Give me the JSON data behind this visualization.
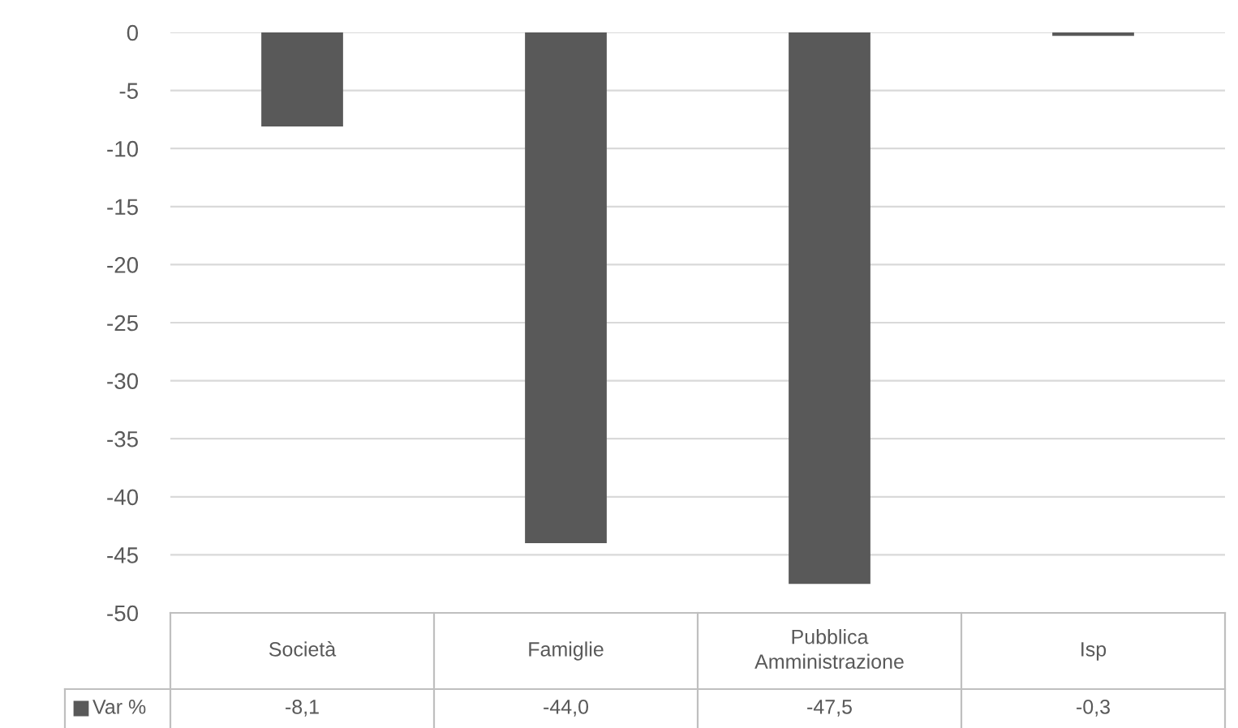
{
  "chart_data": {
    "type": "bar",
    "categories": [
      "Società",
      "Famiglie",
      "Pubblica Amministrazione",
      "Isp"
    ],
    "series": [
      {
        "name": "Var %",
        "color": "#595959",
        "values": [
          -8.1,
          -44.0,
          -47.5,
          -0.3
        ],
        "value_labels": [
          "-8,1",
          "-44,0",
          "-47,5",
          "-0,3"
        ]
      }
    ],
    "ylim": [
      -50,
      0
    ],
    "yticks": [
      -50,
      -45,
      -40,
      -35,
      -30,
      -25,
      -20,
      -15,
      -10,
      -5,
      0
    ],
    "grid": "y"
  }
}
